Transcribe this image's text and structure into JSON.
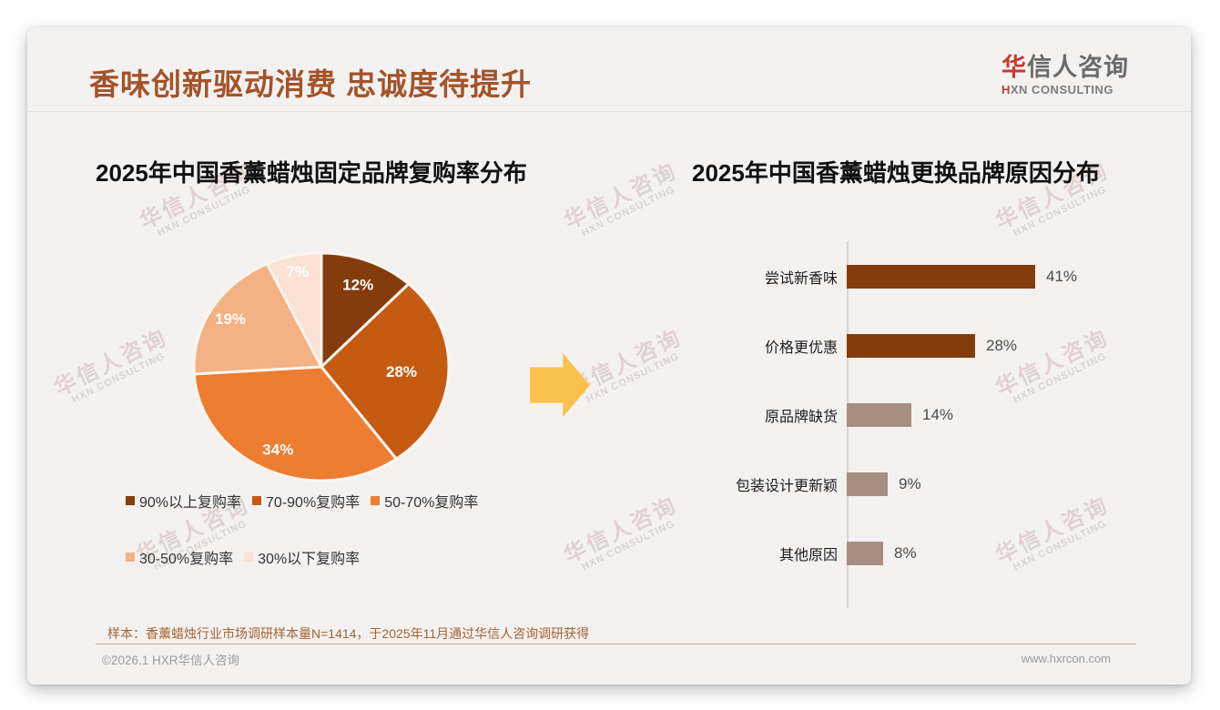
{
  "header": {
    "title": "香味创新驱动消费 忠诚度待提升",
    "logo": {
      "cn_accent": "华",
      "cn_rest": "信人咨询",
      "en_accent": "H",
      "en_rest": "XN CONSULTING"
    }
  },
  "watermark": {
    "cn": "华信人咨询",
    "en": "HXN CONSULTING"
  },
  "chart_data": [
    {
      "type": "pie",
      "title": "2025年中国香薰蜡烛固定品牌复购率分布",
      "labels": [
        "90%以上复购率",
        "70-90%复购率",
        "50-70%复购率",
        "30-50%复购率",
        "30%以下复购率"
      ],
      "values": [
        12,
        28,
        34,
        19,
        7
      ],
      "data_labels": [
        "12%",
        "28%",
        "34%",
        "19%",
        "7%"
      ],
      "colors": [
        "#843C0C",
        "#C55A11",
        "#ED7D31",
        "#F4B183",
        "#FBE2D5"
      ],
      "start_angle_deg": 0,
      "direction": "clockwise",
      "legend_position": "bottom",
      "data_label_color": "#FFFFFF",
      "slice_border_color": "#FCF5EE"
    },
    {
      "type": "bar",
      "title": "2025年中国香薰蜡烛更换品牌原因分布",
      "orientation": "horizontal",
      "categories": [
        "尝试新香味",
        "价格更优惠",
        "原品牌缺货",
        "包装设计更新颖",
        "其他原因"
      ],
      "values": [
        41,
        28,
        14,
        9,
        8
      ],
      "value_labels": [
        "41%",
        "28%",
        "14%",
        "9%",
        "8%"
      ],
      "bar_colors": [
        "#843C0C",
        "#843C0C",
        "#A88D83",
        "#A88D83",
        "#A88D83"
      ],
      "xlim": [
        0,
        50
      ],
      "grid": false,
      "axis_line_color": "#D8D5D2"
    }
  ],
  "footnote": "样本：香薰蜡烛行业市场调研样本量N=1414，于2025年11月通过华信人咨询调研获得",
  "footer": {
    "copyright": "©2026.1 HXR华信人咨询",
    "website": "www.hxrcon.com"
  },
  "colors": {
    "title_brown": "#A4532A",
    "logo_red": "#C13B2E",
    "arrow_yellow": "#FAC14D",
    "footnote_brown": "#A36233",
    "footer_divider_tan": "#C9A284",
    "muted_gray": "#9B9B9B",
    "card_background": "#F4F2F1"
  }
}
